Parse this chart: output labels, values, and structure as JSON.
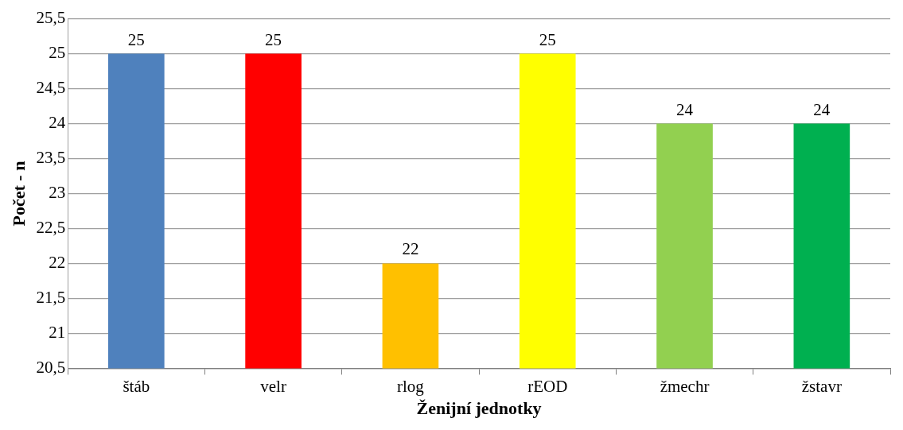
{
  "chart_data": {
    "type": "bar",
    "xlabel": "Ženijní jednotky",
    "ylabel": "Počet - n",
    "categories": [
      "štáb",
      "velr",
      "rlog",
      "rEOD",
      "žmechr",
      "žstavr"
    ],
    "values": [
      25,
      25,
      22,
      25,
      24,
      24
    ],
    "colors": [
      "#4f81bd",
      "#ff0000",
      "#ffc000",
      "#ffff00",
      "#92d050",
      "#00b050"
    ],
    "ylim": [
      20.5,
      25.5
    ],
    "yticks": [
      {
        "value": 20.5,
        "label": "20,5"
      },
      21,
      {
        "value": 21.5,
        "label": "21,5"
      },
      22,
      {
        "value": 22.5,
        "label": "22,5"
      },
      23,
      {
        "value": 23.5,
        "label": "23,5"
      },
      24,
      {
        "value": 24.5,
        "label": "24,5"
      },
      25,
      {
        "value": 25.5,
        "label": "25,5"
      }
    ],
    "grid": "y",
    "legend": false,
    "data_labels": true
  }
}
